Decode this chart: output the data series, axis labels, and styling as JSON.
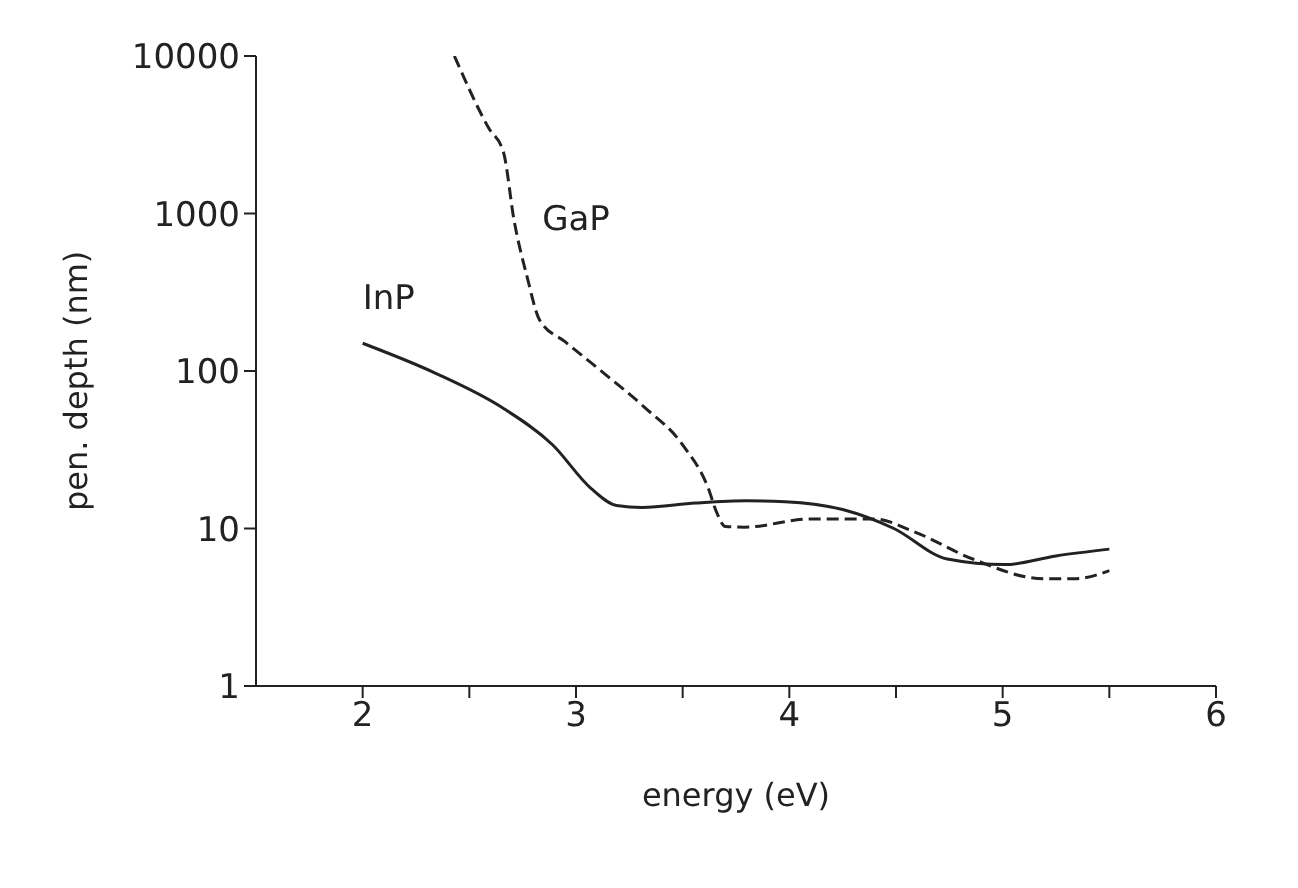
{
  "chart_data": {
    "type": "line",
    "xlabel": "energy (eV)",
    "ylabel": "pen. depth (nm)",
    "log": "y",
    "xlim": [
      1.5,
      6
    ],
    "xticks": [
      2,
      3,
      4,
      5,
      6,
      {
        "value": 2.5,
        "label": null
      },
      {
        "value": 3.5,
        "label": null
      },
      {
        "value": 4.5,
        "label": null
      },
      {
        "value": 5.5,
        "label": null
      }
    ],
    "ylim": [
      1,
      10000
    ],
    "yticks": [
      1,
      10,
      100,
      1000,
      10000
    ],
    "marker": "none",
    "series": [
      {
        "name": "InP",
        "color": "#222222",
        "line_style": "solid",
        "x": [
          2,
          2.34,
          2.65,
          2.89,
          3.07,
          3.19,
          3.31,
          3.56,
          3.8,
          3.98,
          4.25,
          4.49,
          4.74,
          5.01,
          5.25,
          5.5
        ],
        "values": [
          150,
          97,
          59,
          34,
          18,
          14,
          13.6,
          14.5,
          15,
          14.8,
          13.2,
          10,
          6.4,
          5.9,
          6.7,
          7.4
        ]
      },
      {
        "name": "GaP",
        "color": "#222222",
        "line_style": "dashed",
        "x": [
          2.43,
          2.59,
          2.66,
          2.71,
          2.77,
          2.83,
          2.95,
          3.13,
          3.32,
          3.5,
          3.62,
          3.66,
          3.7,
          3.79,
          4.1,
          4.4,
          4.58,
          4.86,
          5.19,
          5.34,
          5.5
        ],
        "values": [
          10000,
          3500,
          2450,
          900,
          400,
          210,
          153,
          97,
          59,
          34,
          18,
          12.6,
          10.3,
          10.2,
          11.5,
          11.5,
          9.6,
          6.4,
          4.8,
          4.8,
          5.4
        ]
      }
    ]
  }
}
